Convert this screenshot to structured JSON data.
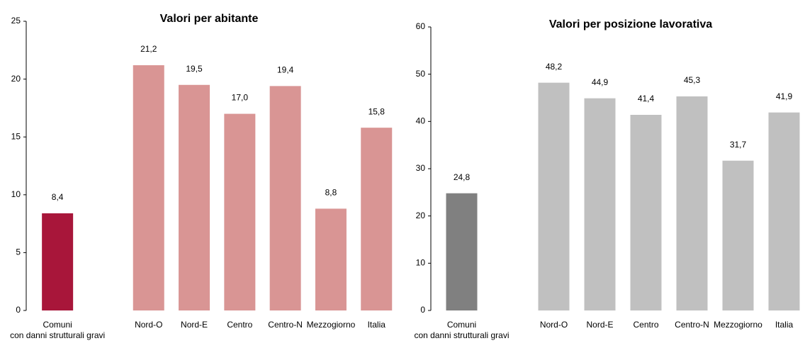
{
  "chart_data": [
    {
      "type": "bar",
      "title": "Valori per abitante",
      "categories": [
        "Comuni\ncon danni strutturali gravi",
        null,
        "Nord-O",
        "Nord-E",
        "Centro",
        "Centro-N",
        "Mezzogiorno",
        "Italia"
      ],
      "values": [
        8.4,
        null,
        21.2,
        19.5,
        17.0,
        19.4,
        8.8,
        15.8
      ],
      "value_labels": [
        "8,4",
        null,
        "21,2",
        "19,5",
        "17,0",
        "19,4",
        "8,8",
        "15,8"
      ],
      "colors": [
        "#a8163a",
        null,
        "#d99594",
        "#d99594",
        "#d99594",
        "#d99594",
        "#d99594",
        "#d99594"
      ],
      "ylim": [
        0,
        25
      ],
      "yticks": [
        0,
        5,
        10,
        15,
        20,
        25
      ]
    },
    {
      "type": "bar",
      "title": "Valori per posizione lavorativa",
      "categories": [
        "Comuni\ncon danni strutturali gravi",
        null,
        "Nord-O",
        "Nord-E",
        "Centro",
        "Centro-N",
        "Mezzogiorno",
        "Italia"
      ],
      "values": [
        24.8,
        null,
        48.2,
        44.9,
        41.4,
        45.3,
        31.7,
        41.9
      ],
      "value_labels": [
        "24,8",
        null,
        "48,2",
        "44,9",
        "41,4",
        "45,3",
        "31,7",
        "41,9"
      ],
      "colors": [
        "#808080",
        null,
        "#c0c0c0",
        "#c0c0c0",
        "#c0c0c0",
        "#c0c0c0",
        "#c0c0c0",
        "#c0c0c0"
      ],
      "ylim": [
        0,
        60
      ],
      "yticks": [
        0,
        10,
        20,
        30,
        40,
        50,
        60
      ]
    }
  ]
}
